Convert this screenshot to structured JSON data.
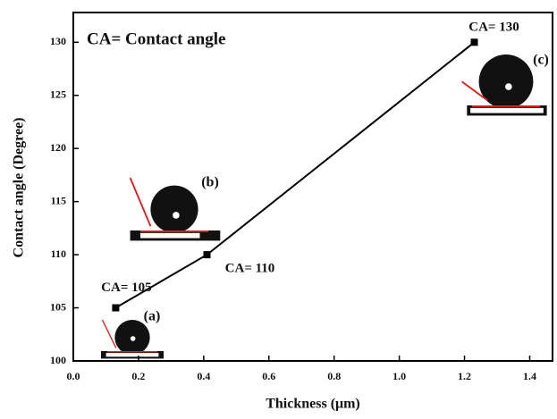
{
  "chart_data": {
    "type": "line",
    "title": "CA= Contact angle",
    "x_label": "Thickness (μm)",
    "y_label": "Contact angle (Degree)",
    "x": [
      0.13,
      0.41,
      1.23
    ],
    "series": [
      {
        "color": "#000000",
        "values": [
          105,
          110,
          130
        ],
        "value_labels": [
          "CA= 105",
          "CA= 110",
          "CA= 130"
        ]
      }
    ],
    "annotations": [
      "(a)",
      "(b)",
      "(c)"
    ],
    "xlim": [
      0,
      1.47
    ],
    "xticks": [
      {
        "value": 0,
        "label": "0.0"
      },
      0.2,
      0.4,
      0.6,
      0.8,
      {
        "value": 1,
        "label": "1.0"
      },
      1.2,
      1.4
    ],
    "ylim": [
      100,
      132.8
    ],
    "yticks": [
      100,
      105,
      110,
      115,
      120,
      125,
      130
    ]
  }
}
